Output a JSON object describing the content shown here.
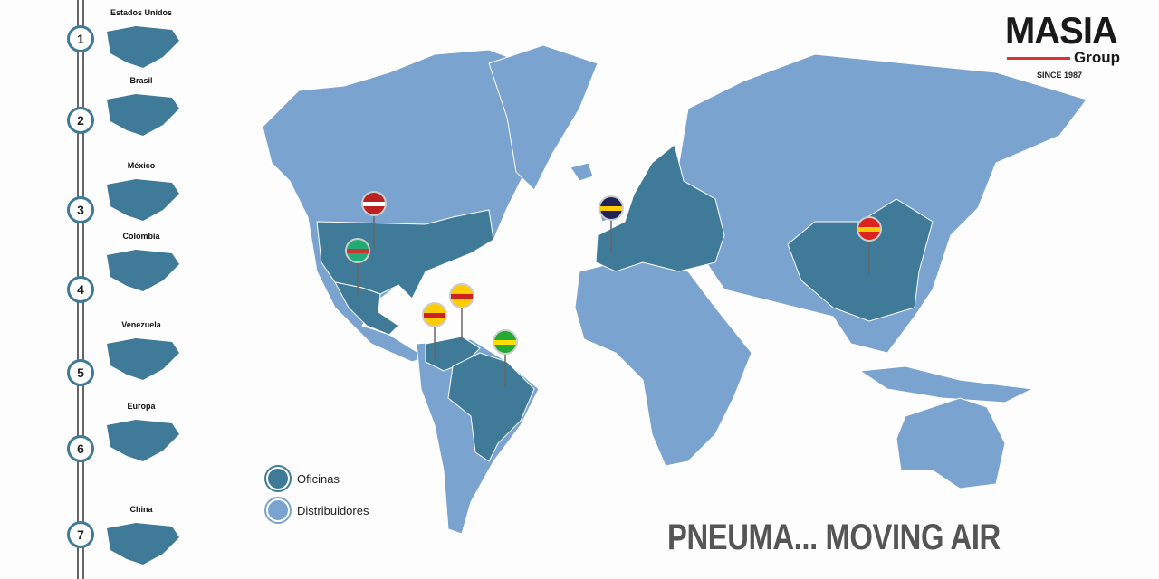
{
  "colors": {
    "office": "#3f7a99",
    "distributor": "#7aa3cf",
    "accent": "#d33333"
  },
  "logo": {
    "name": "MASIA",
    "sub": "Group",
    "since": "SINCE 1987"
  },
  "sidebar": {
    "items": [
      {
        "number": "1",
        "label": "Estados Unidos"
      },
      {
        "number": "2",
        "label": "Brasil"
      },
      {
        "number": "3",
        "label": "México"
      },
      {
        "number": "4",
        "label": "Colombia"
      },
      {
        "number": "5",
        "label": "Venezuela"
      },
      {
        "number": "6",
        "label": "Europa"
      },
      {
        "number": "7",
        "label": "China"
      }
    ]
  },
  "legend": {
    "office": "Oficinas",
    "distributor": "Distribuidores"
  },
  "pins": [
    "usa-flag",
    "mexico-flag",
    "venezuela-flag",
    "colombia-flag",
    "brazil-flag",
    "eu-flag",
    "china-flag"
  ],
  "slogan": "PNEUMA... MOVING AIR"
}
